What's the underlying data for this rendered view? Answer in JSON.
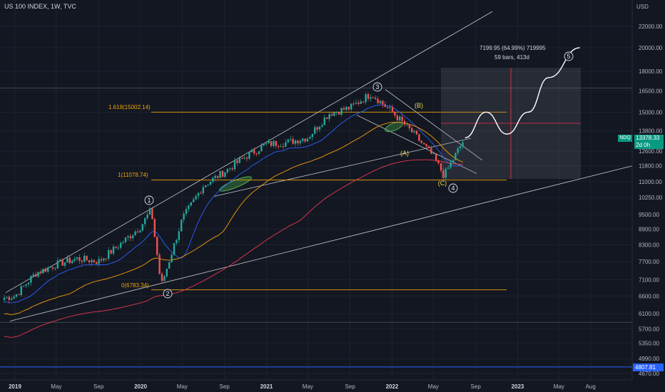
{
  "header": {
    "title": "US 100 INDEX, 1W, TVC"
  },
  "price_scale": {
    "currency": "USD",
    "ticks": [
      22000,
      20000,
      18000,
      16500,
      15000,
      13800,
      12600,
      11800,
      11000,
      10250,
      9500,
      8900,
      8300,
      7700,
      7100,
      6600,
      6100,
      5700,
      5350,
      4990,
      4670
    ],
    "labels": [
      "22000.00",
      "20000.00",
      "18000.00",
      "16500.00",
      "15000.00",
      "13800.00",
      "12600.00",
      "11800.00",
      "11000.00",
      "10250.00",
      "9500.00",
      "8900.00",
      "8300.00",
      "7700.00",
      "7100.00",
      "6600.00",
      "6100.00",
      "5700.00",
      "5350.00",
      "4990.00",
      "4670.00"
    ],
    "ylim": [
      4550,
      23500
    ],
    "scale": "log"
  },
  "time_scale": {
    "labels": [
      "2019",
      "May",
      "Sep",
      "2020",
      "May",
      "Sep",
      "2021",
      "May",
      "Sep",
      "2022",
      "May",
      "Sep",
      "2023",
      "May",
      "Aug"
    ],
    "years": [
      "2019",
      "2020",
      "2021",
      "2022",
      "2023"
    ]
  },
  "symbol_badge": {
    "ticker": "NDQ",
    "price": "13378.33",
    "countdown": "2d 0h",
    "color": "#089981"
  },
  "bottom_line_badge": {
    "price": "4807.81",
    "color": "#2962ff"
  },
  "fib": {
    "level_1618": "1.618(15002.14)",
    "level_1": "1(11078.74)",
    "level_0": "0(6783.34)",
    "color": "#f0a30a"
  },
  "measure": {
    "line1": "7199.95 (64.99%) 719995",
    "line2": "59 bars, 413d"
  },
  "waves": {
    "w1": "1",
    "w2": "2",
    "w3": "3",
    "w4": "4",
    "w5": "5",
    "A": "(A)",
    "B": "(B)",
    "C": "(C)"
  },
  "colors": {
    "up": "#26a69a",
    "down": "#ef5350",
    "ma_fast": "#2962ff",
    "ma_mid": "#f59e0b",
    "ma_slow": "#e53950",
    "bg": "#131722",
    "grid": "#1e222d",
    "label": "#b2b5be"
  },
  "chart_data": {
    "type": "line",
    "title": "US 100 INDEX, 1W, TVC",
    "xlabel": "",
    "ylabel": "",
    "ylim": [
      4550,
      23500
    ],
    "x": [
      "2018-11",
      "2019-01",
      "2019-03",
      "2019-05",
      "2019-07",
      "2019-09",
      "2019-11",
      "2020-01",
      "2020-02",
      "2020-03",
      "2020-05",
      "2020-07",
      "2020-09",
      "2020-11",
      "2021-01",
      "2021-03",
      "2021-05",
      "2021-07",
      "2021-09",
      "2021-11",
      "2022-01",
      "2022-03",
      "2022-05",
      "2022-06",
      "2022-08"
    ],
    "series": [
      {
        "values": [
          6500,
          6600,
          7300,
          7600,
          7800,
          7700,
          8300,
          9000,
          9700,
          6900,
          9300,
          10800,
          11500,
          12300,
          13000,
          13100,
          13400,
          14900,
          15300,
          16300,
          15000,
          13700,
          12300,
          11300,
          13378
        ]
      }
    ],
    "projection": {
      "x": [
        "2022-08",
        "2022-10",
        "2022-12",
        "2023-02",
        "2023-04",
        "2023-07"
      ],
      "values": [
        13378,
        15000,
        13600,
        15000,
        17500,
        20000
      ]
    }
  }
}
